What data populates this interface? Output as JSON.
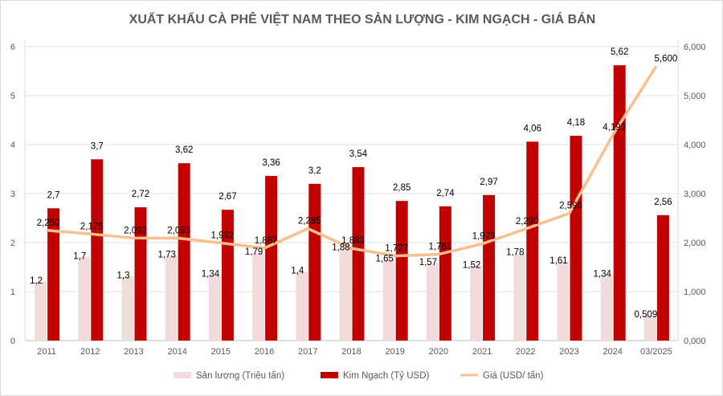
{
  "chart_data": {
    "type": "bar",
    "title": "XUẤT KHẨU CÀ PHÊ VIỆT NAM THEO SẢN LƯỢNG - KIM NGẠCH - GIÁ BÁN",
    "categories": [
      "2011",
      "2012",
      "2013",
      "2014",
      "2015",
      "2016",
      "2017",
      "2018",
      "2019",
      "2020",
      "2021",
      "2022",
      "2023",
      "2024",
      "03/2025"
    ],
    "series": [
      {
        "name": "Sản lượng (Triệu tấn)",
        "type": "bar",
        "axis": "left",
        "color": "#f2dcdb",
        "values": [
          1.2,
          1.7,
          1.3,
          1.73,
          1.34,
          1.79,
          1.4,
          1.88,
          1.65,
          1.57,
          1.52,
          1.78,
          1.61,
          1.34,
          0.509
        ],
        "labels": [
          "1,2",
          "1,7",
          "1,3",
          "1,73",
          "1,34",
          "1,79",
          "1,4",
          "1,88",
          "1,65",
          "1,57",
          "1,52",
          "1,78",
          "1,61",
          "1,34",
          "0,509"
        ]
      },
      {
        "name": "Kim Ngạch (Tỷ USD)",
        "type": "bar",
        "axis": "left",
        "color": "#c00000",
        "values": [
          2.7,
          3.7,
          2.72,
          3.62,
          2.67,
          3.36,
          3.2,
          3.54,
          2.85,
          2.74,
          2.97,
          4.06,
          4.18,
          5.62,
          2.56
        ],
        "labels": [
          "2,7",
          "3,7",
          "2,72",
          "3,62",
          "2,67",
          "3,36",
          "3,2",
          "3,54",
          "2,85",
          "2,74",
          "2,97",
          "4,06",
          "4,18",
          "5,62",
          "2,56"
        ]
      },
      {
        "name": "Giá (USD/ tấn)",
        "type": "line",
        "axis": "right",
        "color": "#f9bf8f",
        "values": [
          2250,
          2176,
          2092,
          2093,
          1992,
          1887,
          2285,
          1883,
          1727,
          1761,
          1973,
          2280,
          2596,
          4193,
          5600
        ],
        "labels": [
          "2,250",
          "2,176",
          "2,092",
          "2,093",
          "1,992",
          "1,887",
          "2,285",
          "1,883",
          "1,727",
          "1,761",
          "1,973",
          "2,280",
          "2,596",
          "4,193",
          "5,600"
        ]
      }
    ],
    "left_axis": {
      "ylim": [
        0,
        6
      ],
      "ticks": [
        "0",
        "1",
        "2",
        "3",
        "4",
        "5",
        "6"
      ]
    },
    "right_axis": {
      "ylim": [
        0,
        6000
      ],
      "ticks": [
        "0,000",
        "1,000",
        "2,000",
        "3,000",
        "4,000",
        "5,000",
        "6,000"
      ]
    },
    "grid": true,
    "legend": "bottom"
  }
}
